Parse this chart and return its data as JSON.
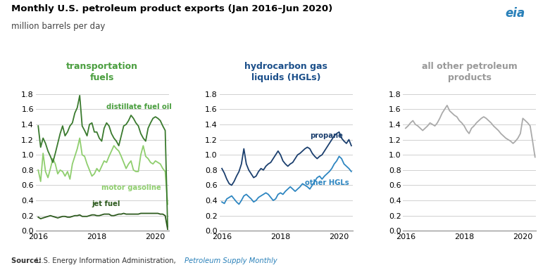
{
  "title": "Monthly U.S. petroleum product exports (Jan 2016–Jun 2020)",
  "subtitle": "million barrels per day",
  "source_bold": "Source: ",
  "source_normal": "U.S. Energy Information Administration, ",
  "source_italic": "Petroleum Supply Monthly",
  "panel_titles": [
    "transportation\nfuels",
    "hydrocarbon gas\nliquids (HGLs)",
    "all other petroleum\nproducts"
  ],
  "panel_title_colors": [
    "#4a9e3f",
    "#1b4f8a",
    "#999999"
  ],
  "ylim": [
    0.0,
    1.9
  ],
  "yticks": [
    0.0,
    0.2,
    0.4,
    0.6,
    0.8,
    1.0,
    1.2,
    1.4,
    1.6,
    1.8
  ],
  "xticks": [
    0,
    24,
    48
  ],
  "xticklabels": [
    "2016",
    "2018",
    "2020"
  ],
  "n_months": 54,
  "distillate_fuel_oil": [
    1.38,
    1.1,
    1.22,
    1.15,
    1.05,
    0.98,
    0.9,
    1.02,
    1.15,
    1.28,
    1.38,
    1.25,
    1.3,
    1.38,
    1.42,
    1.55,
    1.62,
    1.78,
    1.38,
    1.32,
    1.25,
    1.4,
    1.42,
    1.3,
    1.3,
    1.22,
    1.18,
    1.35,
    1.42,
    1.38,
    1.28,
    1.22,
    1.18,
    1.12,
    1.25,
    1.38,
    1.4,
    1.45,
    1.52,
    1.48,
    1.42,
    1.38,
    1.28,
    1.22,
    1.18,
    1.35,
    1.42,
    1.48,
    1.5,
    1.48,
    1.45,
    1.38,
    1.32,
    0.05
  ],
  "motor_gasoline": [
    0.8,
    0.65,
    1.02,
    0.78,
    0.7,
    0.82,
    0.95,
    0.88,
    0.75,
    0.8,
    0.78,
    0.72,
    0.78,
    0.68,
    0.88,
    0.98,
    1.08,
    1.22,
    1.0,
    0.98,
    0.88,
    0.8,
    0.72,
    0.75,
    0.82,
    0.78,
    0.85,
    0.92,
    0.9,
    0.98,
    1.05,
    1.12,
    1.08,
    1.05,
    0.98,
    0.9,
    0.82,
    0.88,
    0.92,
    0.8,
    0.78,
    0.78,
    1.0,
    1.12,
    0.98,
    0.95,
    0.9,
    0.88,
    0.92,
    0.9,
    0.88,
    0.82,
    0.78,
    0.35
  ],
  "jet_fuel": [
    0.18,
    0.16,
    0.17,
    0.18,
    0.19,
    0.2,
    0.19,
    0.18,
    0.17,
    0.18,
    0.19,
    0.19,
    0.18,
    0.18,
    0.19,
    0.2,
    0.2,
    0.21,
    0.19,
    0.19,
    0.19,
    0.2,
    0.21,
    0.21,
    0.2,
    0.2,
    0.21,
    0.22,
    0.22,
    0.22,
    0.2,
    0.2,
    0.21,
    0.22,
    0.22,
    0.23,
    0.22,
    0.22,
    0.22,
    0.22,
    0.22,
    0.22,
    0.23,
    0.23,
    0.23,
    0.23,
    0.23,
    0.23,
    0.23,
    0.23,
    0.22,
    0.22,
    0.2,
    0.02
  ],
  "propane": [
    0.82,
    0.76,
    0.68,
    0.62,
    0.6,
    0.65,
    0.72,
    0.78,
    0.88,
    1.08,
    0.88,
    0.8,
    0.75,
    0.7,
    0.72,
    0.78,
    0.82,
    0.8,
    0.85,
    0.88,
    0.9,
    0.95,
    1.0,
    1.05,
    1.0,
    0.92,
    0.88,
    0.85,
    0.88,
    0.9,
    0.95,
    1.0,
    1.02,
    1.05,
    1.08,
    1.1,
    1.08,
    1.02,
    0.98,
    0.95,
    0.98,
    1.0,
    1.05,
    1.1,
    1.15,
    1.2,
    1.25,
    1.28,
    1.3,
    1.22,
    1.18,
    1.15,
    1.2,
    1.12
  ],
  "other_hgls": [
    0.38,
    0.36,
    0.42,
    0.44,
    0.46,
    0.42,
    0.38,
    0.35,
    0.4,
    0.46,
    0.48,
    0.45,
    0.42,
    0.38,
    0.4,
    0.44,
    0.46,
    0.48,
    0.5,
    0.48,
    0.44,
    0.4,
    0.42,
    0.48,
    0.5,
    0.48,
    0.52,
    0.55,
    0.58,
    0.55,
    0.52,
    0.55,
    0.58,
    0.62,
    0.6,
    0.58,
    0.55,
    0.6,
    0.65,
    0.7,
    0.72,
    0.68,
    0.72,
    0.75,
    0.78,
    0.82,
    0.88,
    0.92,
    0.98,
    0.95,
    0.88,
    0.85,
    0.82,
    0.78
  ],
  "all_other": [
    1.35,
    1.38,
    1.42,
    1.45,
    1.4,
    1.38,
    1.35,
    1.32,
    1.35,
    1.38,
    1.42,
    1.4,
    1.38,
    1.42,
    1.48,
    1.55,
    1.6,
    1.65,
    1.58,
    1.55,
    1.52,
    1.5,
    1.45,
    1.42,
    1.38,
    1.32,
    1.28,
    1.35,
    1.38,
    1.42,
    1.45,
    1.48,
    1.5,
    1.48,
    1.45,
    1.42,
    1.38,
    1.35,
    1.32,
    1.28,
    1.25,
    1.22,
    1.2,
    1.18,
    1.15,
    1.18,
    1.22,
    1.28,
    1.48,
    1.45,
    1.42,
    1.38,
    1.18,
    0.97
  ],
  "colors": {
    "distillate_fuel_oil": "#3a7a2e",
    "motor_gasoline": "#8fce6e",
    "jet_fuel": "#2d5a1e",
    "propane": "#1b3f6e",
    "other_hgls": "#2e86c1",
    "all_other": "#aaaaaa"
  },
  "label_colors": {
    "distillate_fuel_oil": "#4a9e3f",
    "motor_gasoline": "#8fce6e",
    "jet_fuel": "#2d5a1e",
    "propane": "#1b3f6e",
    "other_hgls": "#2e86c1"
  },
  "bg_color": "#ffffff",
  "grid_color": "#d0d0d0"
}
